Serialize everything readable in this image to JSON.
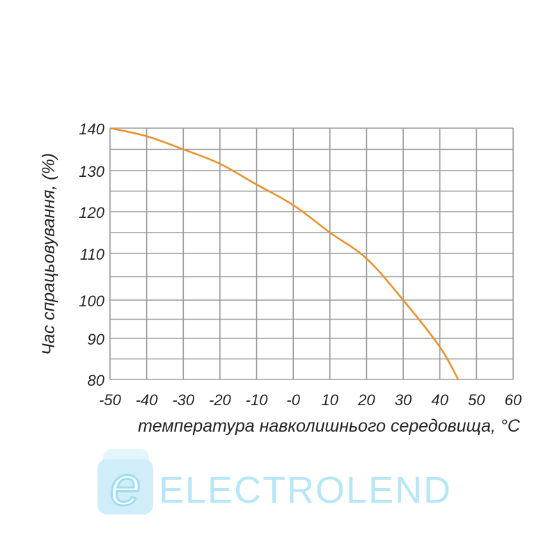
{
  "chart_data": {
    "type": "line",
    "title": "",
    "xlabel": "температура навколишнього середовища, °C",
    "ylabel": "Час спрацьовування, (%)",
    "xlim": [
      -50,
      60
    ],
    "ylim": [
      80,
      140
    ],
    "x_ticks": [
      "-50",
      "-40",
      "-30",
      "-20",
      "-10",
      "-0",
      "10",
      "20",
      "30",
      "40",
      "50",
      "60"
    ],
    "y_ticks": [
      "140",
      "130",
      "120",
      "110",
      "100",
      "90",
      "80"
    ],
    "grid": true,
    "series": [
      {
        "color": "#e8922e",
        "x": [
          -50,
          -40,
          -30,
          -20,
          -10,
          0,
          10,
          20,
          30,
          40,
          45
        ],
        "y": [
          140,
          138.1,
          135,
          131.6,
          126.6,
          121.6,
          115,
          108.9,
          100,
          87.9,
          80
        ]
      }
    ]
  },
  "logo": {
    "text": "ELECTROLEND",
    "mark": "e",
    "color": "#9fdcf3"
  }
}
